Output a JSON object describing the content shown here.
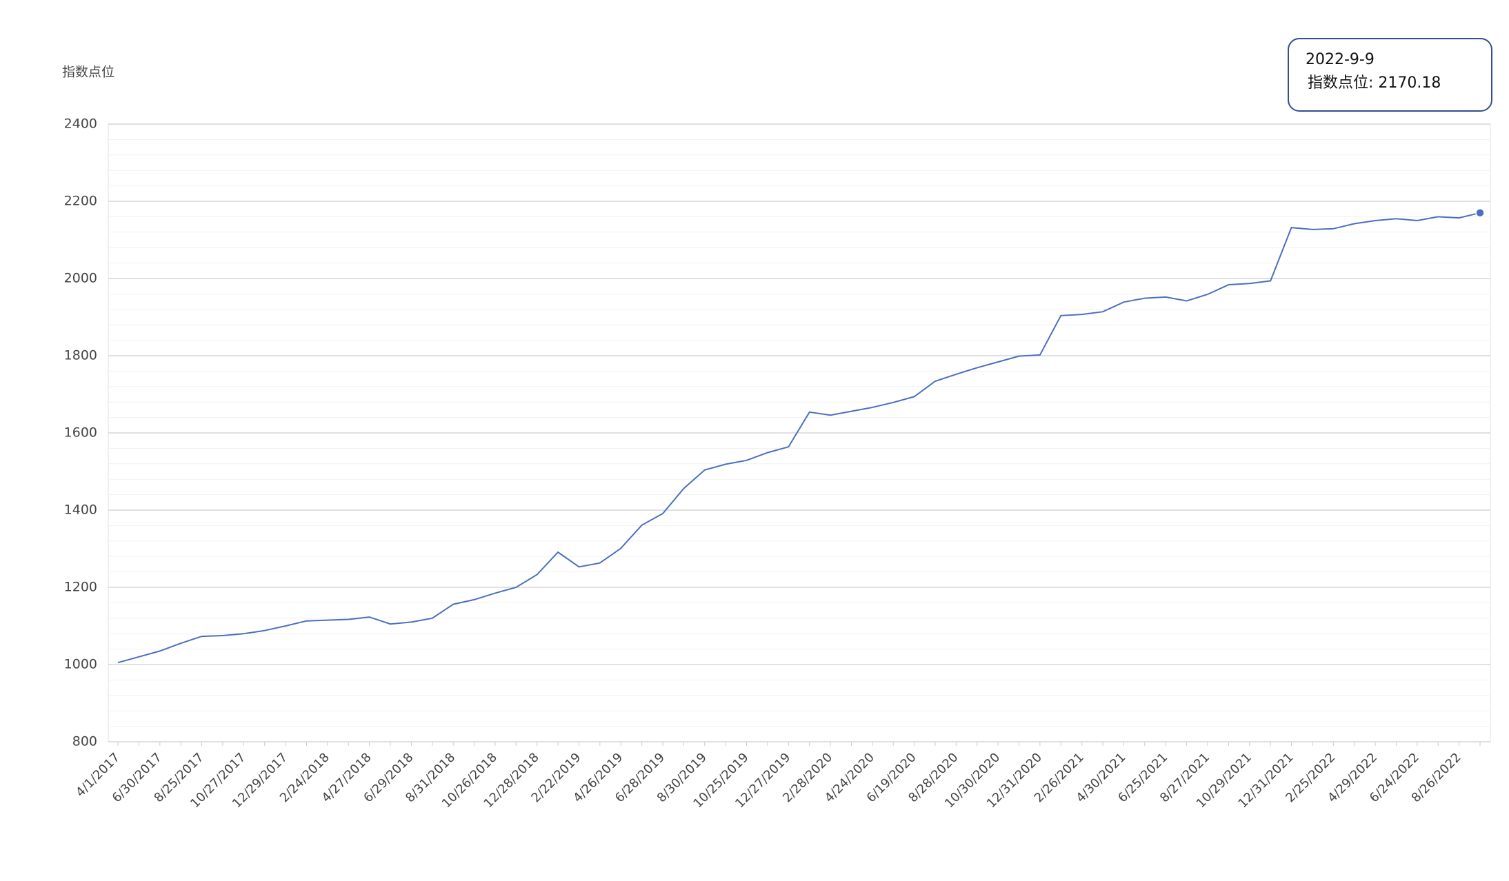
{
  "chart_data": {
    "type": "line",
    "y_label": "指数点位",
    "categories": [
      "4/1/2017",
      null,
      "6/30/2017",
      null,
      "8/25/2017",
      null,
      "10/27/2017",
      null,
      "12/29/2017",
      null,
      "2/24/2018",
      null,
      "4/27/2018",
      null,
      "6/29/2018",
      null,
      "8/31/2018",
      null,
      "10/26/2018",
      null,
      "12/28/2018",
      null,
      "2/22/2019",
      null,
      "4/26/2019",
      null,
      "6/28/2019",
      null,
      "8/30/2019",
      null,
      "10/25/2019",
      null,
      "12/27/2019",
      null,
      "2/28/2020",
      null,
      "4/24/2020",
      null,
      "6/19/2020",
      null,
      "8/28/2020",
      null,
      "10/30/2020",
      null,
      "12/31/2020",
      null,
      "2/26/2021",
      null,
      "4/30/2021",
      null,
      "6/25/2021",
      null,
      "8/27/2021",
      null,
      "10/29/2021",
      null,
      "12/31/2021",
      null,
      "2/25/2022",
      null,
      "4/29/2022",
      null,
      "6/24/2022",
      null,
      "8/26/2022",
      null
    ],
    "values": [
      1005,
      1020,
      1035,
      1055,
      1073,
      1075,
      1080,
      1088,
      1100,
      1113,
      1115,
      1117,
      1123,
      1105,
      1110,
      1120,
      1156,
      1168,
      1185,
      1200,
      1233,
      1291,
      1253,
      1263,
      1301,
      1361,
      1391,
      1456,
      1504,
      1519,
      1529,
      1549,
      1564,
      1654,
      1646,
      1656,
      1666,
      1679,
      1694,
      1734,
      1752,
      1769,
      1784,
      1799,
      1802,
      1904,
      1907,
      1914,
      1939,
      1949,
      1952,
      1942,
      1959,
      1984,
      1987,
      1994,
      2132,
      2127,
      2129,
      2142,
      2150,
      2155,
      2150,
      2160,
      2157,
      2170.18
    ],
    "color": "#4a6fc0",
    "ylim": [
      800,
      2400
    ],
    "yticks": [
      800,
      1000,
      1200,
      1400,
      1600,
      1800,
      2000,
      2200,
      2400
    ],
    "grid": true,
    "tooltip": {
      "title": "2022-9-9",
      "label": "指数点位:"
    }
  }
}
